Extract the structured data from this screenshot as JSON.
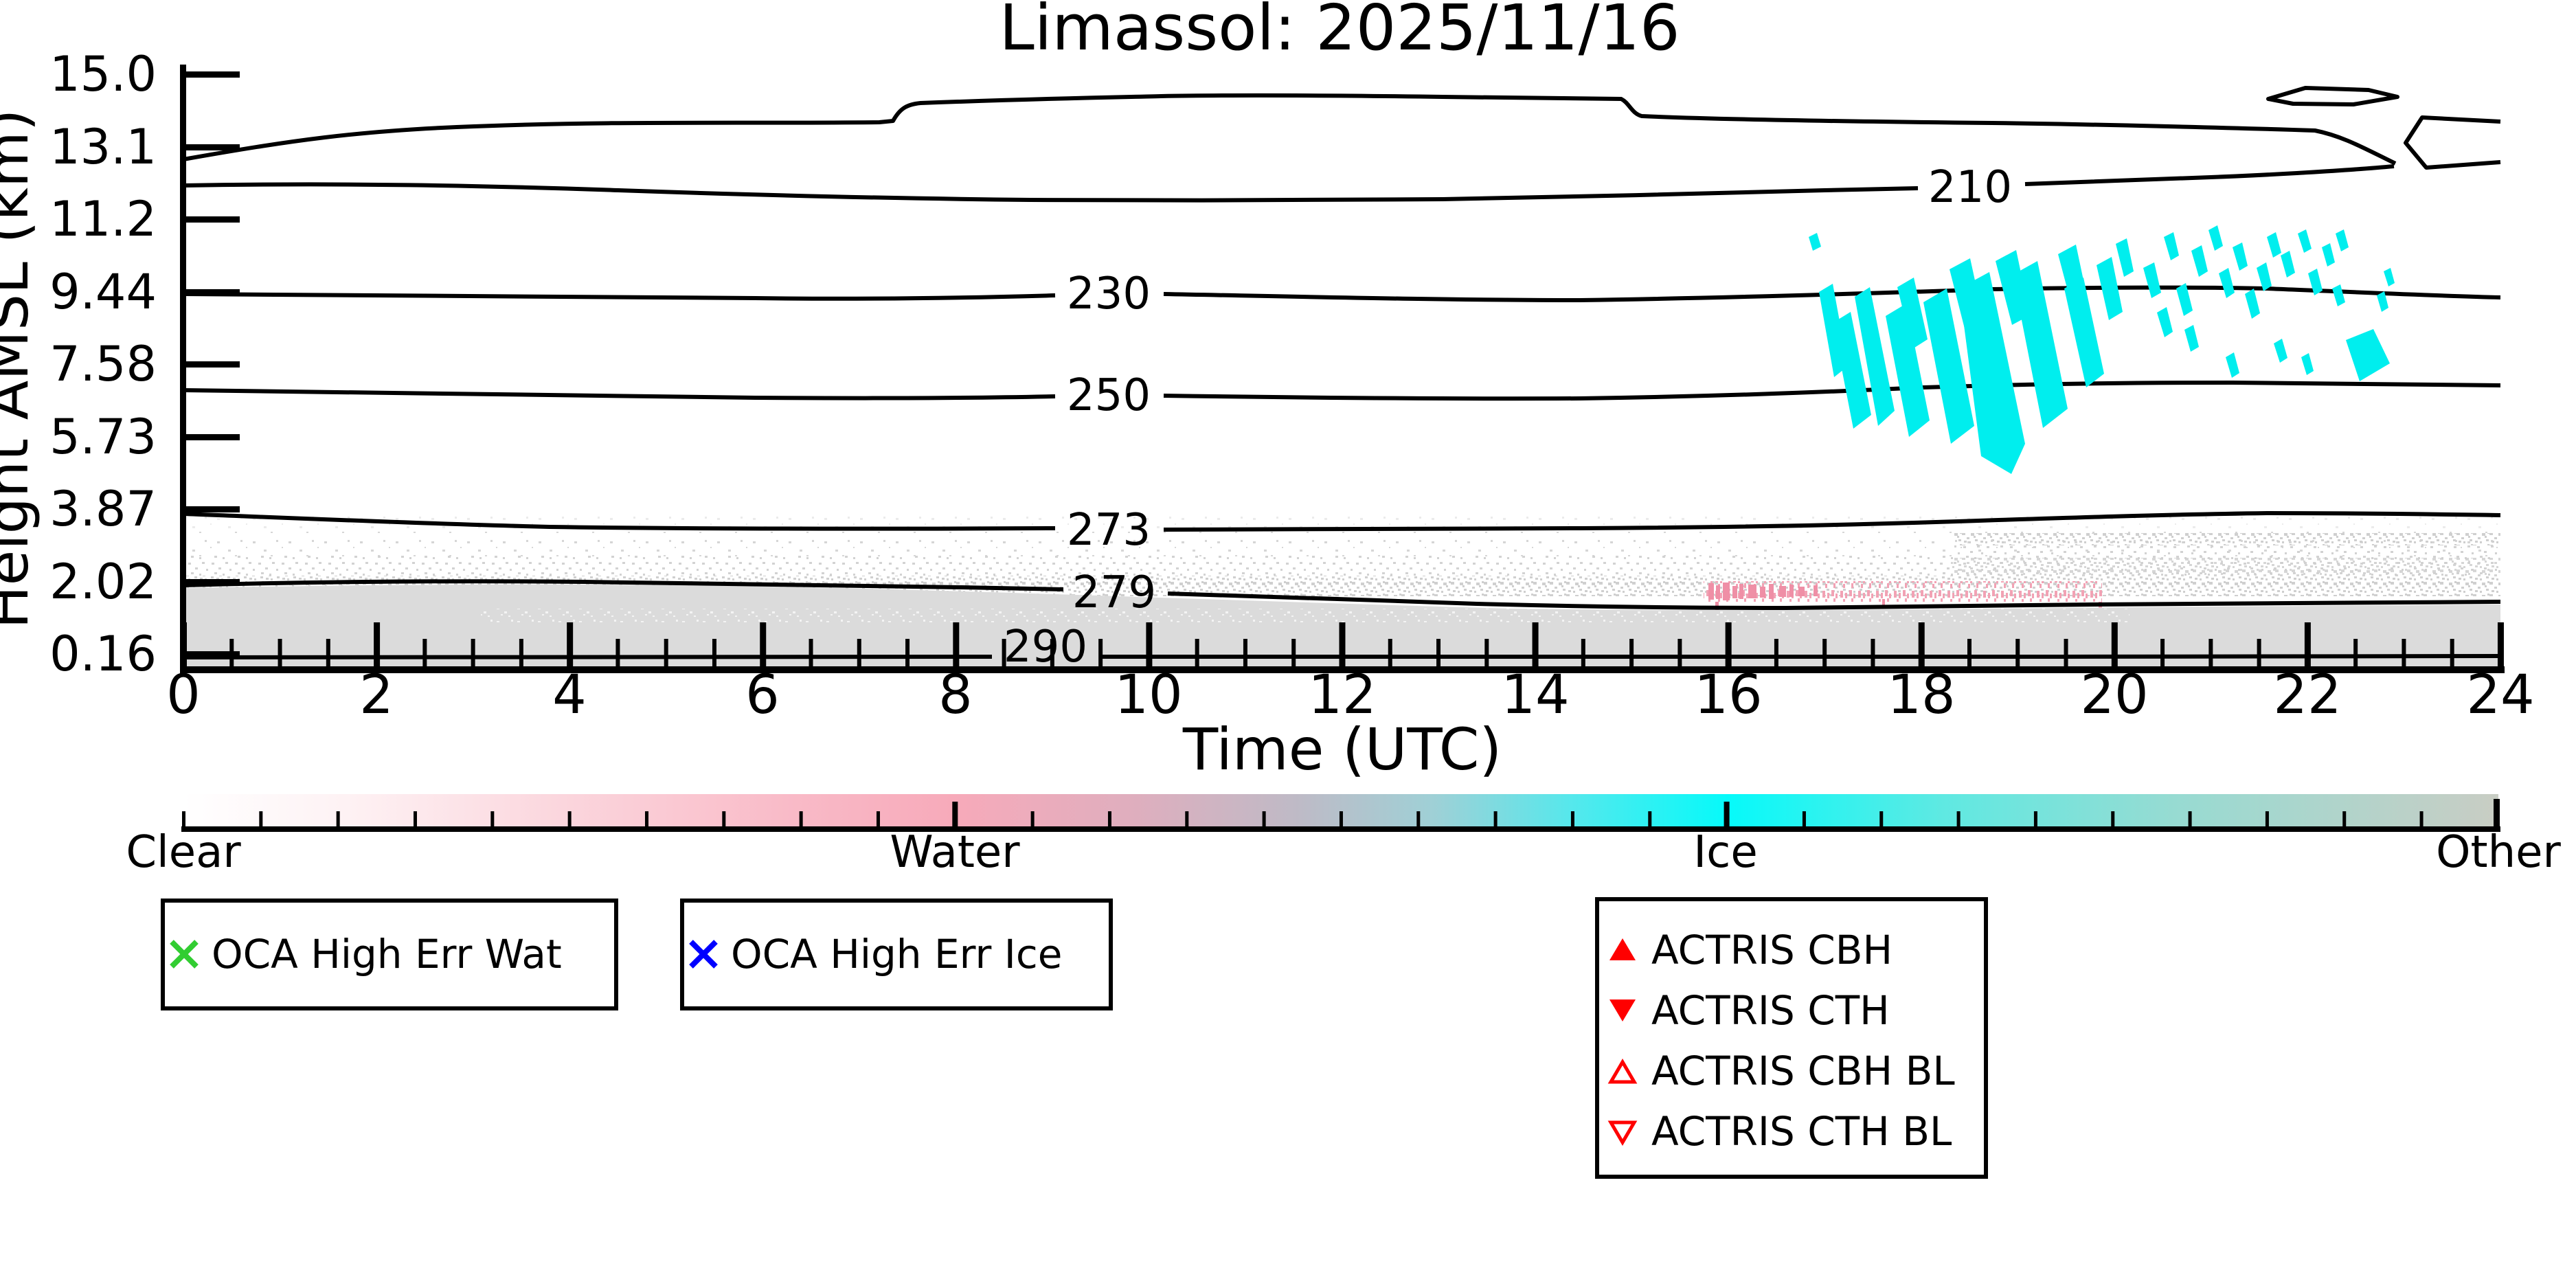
{
  "title": "Limassol: 2025/11/16",
  "axes": {
    "xlabel": "Time (UTC)",
    "ylabel": "Height AMSL (km)",
    "x_ticks": [
      "0",
      "2",
      "4",
      "6",
      "8",
      "10",
      "12",
      "14",
      "16",
      "18",
      "20",
      "22",
      "24"
    ],
    "y_ticks": [
      "15.0",
      "13.1",
      "11.2",
      "9.44",
      "7.58",
      "5.73",
      "3.87",
      "2.02",
      "0.16"
    ]
  },
  "contours": {
    "labels": [
      "210",
      "230",
      "250",
      "273",
      "279",
      "290"
    ]
  },
  "colorbar": {
    "labels": [
      "Clear",
      "Water",
      "Ice",
      "Other"
    ],
    "colors": {
      "clear": "#FFFFFF",
      "water": "#F7AABA",
      "ice": "#00F2F2",
      "other": "#C9CDC9"
    }
  },
  "legend_boxes": [
    {
      "items": [
        {
          "marker": "x",
          "color": "#32CD32",
          "label": "OCA High Err Wat"
        }
      ]
    },
    {
      "items": [
        {
          "marker": "x",
          "color": "#0000FF",
          "label": "OCA High Err Ice"
        }
      ]
    },
    {
      "items": [
        {
          "marker": "triangle-up-filled",
          "color": "#FF0000",
          "label": "ACTRIS CBH"
        },
        {
          "marker": "triangle-down-filled",
          "color": "#FF0000",
          "label": "ACTRIS CTH"
        },
        {
          "marker": "triangle-up-open",
          "color": "#FF0000",
          "label": "ACTRIS CBH BL"
        },
        {
          "marker": "triangle-down-open",
          "color": "#FF0000",
          "label": "ACTRIS CTH BL"
        }
      ]
    }
  ],
  "chart_data": {
    "type": "heatmap",
    "title": "Limassol: 2025/11/16",
    "xlabel": "Time (UTC)",
    "ylabel": "Height AMSL (km)",
    "xlim": [
      0,
      24
    ],
    "x_tick_values": [
      0,
      2,
      4,
      6,
      8,
      10,
      12,
      14,
      16,
      18,
      20,
      22,
      24
    ],
    "y_tick_values_km": [
      15.0,
      13.1,
      11.2,
      9.44,
      7.58,
      5.73,
      3.87,
      2.02,
      0.16
    ],
    "y_axis_note": "ticks equally spaced (model-level axis), 15.0 km at top, 0.16 km at bottom",
    "classes": [
      "Clear",
      "Water",
      "Ice",
      "Other"
    ],
    "temperature_contours": [
      {
        "label": "210",
        "approx_height_km_at_label": 11.9
      },
      {
        "label": "230",
        "approx_height_km_at_label": 9.4
      },
      {
        "label": "250",
        "approx_height_km_at_label": 6.9
      },
      {
        "label": "273",
        "approx_height_km_at_label": 3.4
      },
      {
        "label": "279",
        "approx_height_km_at_label": 2.1
      },
      {
        "label": "290",
        "approx_height_km_at_label": 0.35
      }
    ],
    "features": [
      {
        "class": "Ice",
        "color": "#00EEEE",
        "time_utc_range": [
          16.9,
          22.9
        ],
        "height_km_range": [
          7.2,
          11.3
        ],
        "description": "streaky cirrus fall-streak cloud, densest 17-19.5 UTC"
      },
      {
        "class": "Water",
        "color": "#F2A2B4",
        "time_utc_range": [
          15.7,
          19.9
        ],
        "height_km_range": [
          1.95,
          2.3
        ],
        "description": "thin speckled water layer just above surface layer top"
      },
      {
        "class": "Other",
        "color": "#DBDBDB",
        "time_utc_range": [
          0,
          24
        ],
        "height_km_range": [
          0.16,
          2.0
        ],
        "description": "solid near-surface layer, speckled aerosol up to ~3.5 km, denser band ~3.3 km after 18 UTC"
      }
    ],
    "legend_position": "below chart",
    "grid": false
  }
}
